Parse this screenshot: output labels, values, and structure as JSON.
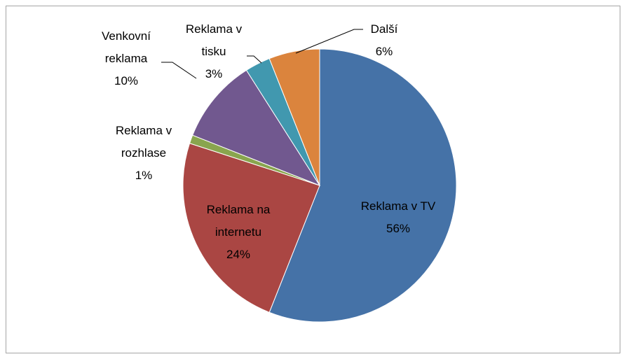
{
  "chart_data": {
    "type": "pie",
    "categories": [
      "Reklama v TV",
      "Reklama na internetu",
      "Reklama v rozhlase",
      "Venkovní reklama",
      "Reklama v tisku",
      "Další"
    ],
    "values": [
      56,
      24,
      1,
      10,
      3,
      6
    ],
    "value_labels": [
      "56%",
      "24%",
      "1%",
      "10%",
      "3%",
      "6%"
    ],
    "colors": [
      "#4572a7",
      "#aa4643",
      "#89a54e",
      "#71588f",
      "#4198af",
      "#db843d"
    ]
  }
}
